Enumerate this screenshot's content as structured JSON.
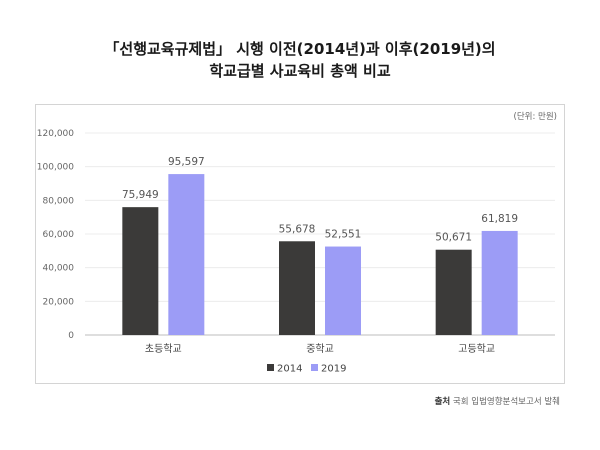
{
  "title_line1": "「선행교육규제법」 시행 이전(2014년)과 이후(2019년)의",
  "title_line2": "학교급별 사교육비 총액 비교",
  "unit_label": "(단위: 만원)",
  "source_label": "출처",
  "source_text": "국회 입법영향분석보고서  발췌",
  "chart_data": {
    "type": "bar",
    "categories": [
      "초등학교",
      "중학교",
      "고등학교"
    ],
    "series": [
      {
        "name": "2014",
        "values": [
          75949,
          55678,
          50671
        ],
        "labels": [
          "75,949",
          "55,678",
          "50,671"
        ],
        "color": "#3b3a39"
      },
      {
        "name": "2019",
        "values": [
          95597,
          52551,
          61819
        ],
        "labels": [
          "95,597",
          "52,551",
          "61,819"
        ],
        "color": "#9c9cf6"
      }
    ],
    "ylim": [
      0,
      120000
    ],
    "yticks": [
      0,
      20000,
      40000,
      60000,
      80000,
      100000,
      120000
    ],
    "ytick_labels": [
      "0",
      "20,000",
      "40,000",
      "60,000",
      "80,000",
      "100,000",
      "120,000"
    ],
    "grid": true,
    "legend_position": "bottom-center"
  }
}
